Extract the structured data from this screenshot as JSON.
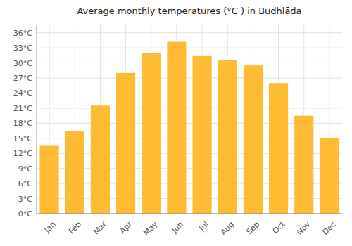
{
  "chart_data": {
    "type": "bar",
    "title": "Average monthly temperatures (°C ) in Budhlāda",
    "categories": [
      "Jan",
      "Feb",
      "Mar",
      "Apr",
      "May",
      "Jun",
      "Jul",
      "Aug",
      "Sep",
      "Oct",
      "Nov",
      "Dec"
    ],
    "values": [
      13.5,
      16.5,
      21.5,
      28.0,
      32.0,
      34.2,
      31.5,
      30.5,
      29.5,
      26.0,
      19.5,
      15.0
    ],
    "color": "#FFBB33",
    "ylim": [
      0,
      37.5
    ],
    "yticks": [
      {
        "value": 0,
        "label": "0°C"
      },
      {
        "value": 3,
        "label": "3°C"
      },
      {
        "value": 6,
        "label": "6°C"
      },
      {
        "value": 9,
        "label": "9°C"
      },
      {
        "value": 12,
        "label": "12°C"
      },
      {
        "value": 15,
        "label": "15°C"
      },
      {
        "value": 18,
        "label": "18°C"
      },
      {
        "value": 21,
        "label": "21°C"
      },
      {
        "value": 24,
        "label": "24°C"
      },
      {
        "value": 27,
        "label": "27°C"
      },
      {
        "value": 30,
        "label": "30°C"
      },
      {
        "value": 33,
        "label": "33°C"
      },
      {
        "value": 36,
        "label": "36°C"
      }
    ],
    "grid": true
  }
}
